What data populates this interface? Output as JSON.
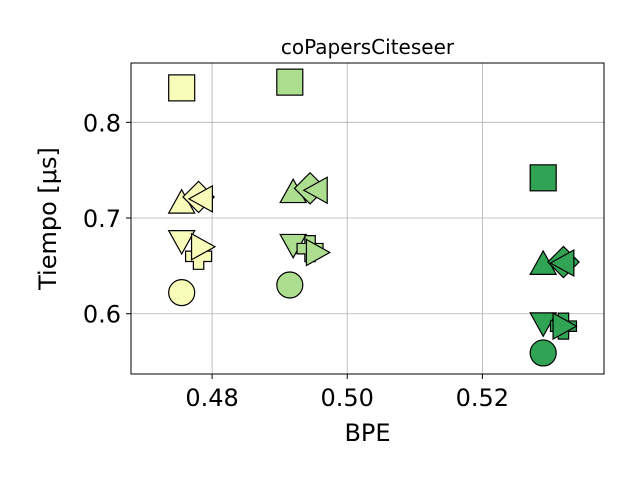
{
  "chart_data": {
    "type": "scatter",
    "title": "coPapersCiteseer",
    "xlabel": "BPE",
    "ylabel": "Tiempo [μs]",
    "xlim": [
      0.468,
      0.538
    ],
    "ylim": [
      0.537,
      0.862
    ],
    "xticks": [
      0.48,
      0.5,
      0.52
    ],
    "xtick_labels": [
      "0.48",
      "0.50",
      "0.52"
    ],
    "yticks": [
      0.6,
      0.7,
      0.8
    ],
    "ytick_labels": [
      "0.6",
      "0.7",
      "0.8"
    ],
    "grid": true,
    "legend": "none",
    "points": [
      {
        "x": 0.4755,
        "y": 0.836,
        "marker": "square",
        "color": "#f7fcb9"
      },
      {
        "x": 0.4755,
        "y": 0.716,
        "marker": "triangle-up",
        "color": "#f7fcb9"
      },
      {
        "x": 0.478,
        "y": 0.722,
        "marker": "diamond",
        "color": "#f7fcb9"
      },
      {
        "x": 0.4785,
        "y": 0.72,
        "marker": "triangle-left",
        "color": "#f7fcb9"
      },
      {
        "x": 0.4755,
        "y": 0.676,
        "marker": "triangle-down",
        "color": "#f7fcb9"
      },
      {
        "x": 0.478,
        "y": 0.66,
        "marker": "plus",
        "color": "#f7fcb9"
      },
      {
        "x": 0.4785,
        "y": 0.67,
        "marker": "triangle-right",
        "color": "#f7fcb9"
      },
      {
        "x": 0.4755,
        "y": 0.622,
        "marker": "circle",
        "color": "#f7fcb9"
      },
      {
        "x": 0.4915,
        "y": 0.842,
        "marker": "square",
        "color": "#addd8e"
      },
      {
        "x": 0.492,
        "y": 0.727,
        "marker": "triangle-up",
        "color": "#addd8e"
      },
      {
        "x": 0.4945,
        "y": 0.731,
        "marker": "diamond",
        "color": "#addd8e"
      },
      {
        "x": 0.4955,
        "y": 0.729,
        "marker": "triangle-left",
        "color": "#addd8e"
      },
      {
        "x": 0.492,
        "y": 0.672,
        "marker": "triangle-down",
        "color": "#addd8e"
      },
      {
        "x": 0.4945,
        "y": 0.668,
        "marker": "plus",
        "color": "#addd8e"
      },
      {
        "x": 0.4955,
        "y": 0.664,
        "marker": "triangle-right",
        "color": "#addd8e"
      },
      {
        "x": 0.4915,
        "y": 0.63,
        "marker": "circle",
        "color": "#addd8e"
      },
      {
        "x": 0.529,
        "y": 0.742,
        "marker": "square",
        "color": "#31a354"
      },
      {
        "x": 0.529,
        "y": 0.652,
        "marker": "triangle-up",
        "color": "#31a354"
      },
      {
        "x": 0.532,
        "y": 0.654,
        "marker": "diamond",
        "color": "#31a354"
      },
      {
        "x": 0.532,
        "y": 0.653,
        "marker": "triangle-left",
        "color": "#31a354"
      },
      {
        "x": 0.529,
        "y": 0.59,
        "marker": "triangle-down",
        "color": "#31a354"
      },
      {
        "x": 0.532,
        "y": 0.587,
        "marker": "plus",
        "color": "#31a354"
      },
      {
        "x": 0.532,
        "y": 0.587,
        "marker": "triangle-right",
        "color": "#31a354"
      },
      {
        "x": 0.529,
        "y": 0.559,
        "marker": "circle",
        "color": "#31a354"
      }
    ]
  }
}
